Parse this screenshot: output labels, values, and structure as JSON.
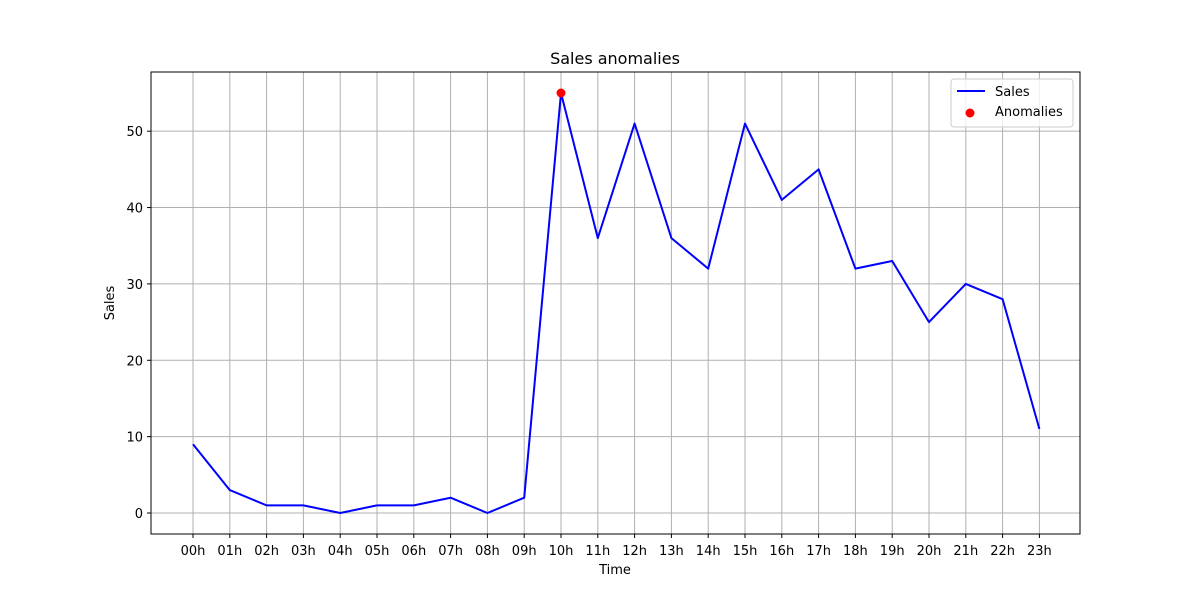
{
  "chart_data": {
    "type": "line",
    "title": "Sales anomalies",
    "xlabel": "Time",
    "ylabel": "Sales",
    "categories": [
      "00h",
      "01h",
      "02h",
      "03h",
      "04h",
      "05h",
      "06h",
      "07h",
      "08h",
      "09h",
      "10h",
      "11h",
      "12h",
      "13h",
      "14h",
      "15h",
      "16h",
      "17h",
      "18h",
      "19h",
      "20h",
      "21h",
      "22h",
      "23h"
    ],
    "series": [
      {
        "name": "Sales",
        "kind": "line",
        "color": "#0000ff",
        "values": [
          9,
          3,
          1,
          1,
          0,
          1,
          1,
          2,
          0,
          2,
          55,
          36,
          51,
          36,
          32,
          51,
          41,
          45,
          32,
          33,
          25,
          30,
          28,
          11
        ]
      },
      {
        "name": "Anomalies",
        "kind": "scatter",
        "color": "#ff0000",
        "points": [
          {
            "x": "10h",
            "y": 55
          }
        ]
      }
    ],
    "ylim": [
      -2.75,
      57.75
    ],
    "yticks": [
      0,
      10,
      20,
      30,
      40,
      50
    ],
    "grid": true,
    "legend_position": "top-right"
  }
}
